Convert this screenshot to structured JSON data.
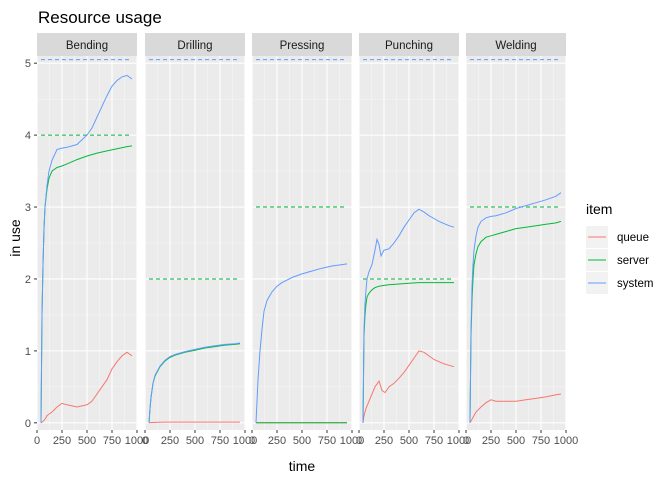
{
  "chart_data": {
    "type": "line",
    "title": "Resource usage",
    "xlabel": "time",
    "ylabel": "in use",
    "xlim": [
      0,
      1000
    ],
    "ylim": [
      -0.1,
      5.1
    ],
    "x_ticks": [
      0,
      250,
      500,
      750,
      1000
    ],
    "x_tick_labels": [
      "0",
      "250",
      "500",
      "750",
      "1000"
    ],
    "y_ticks": [
      0,
      1,
      2,
      3,
      4,
      5
    ],
    "grid": true,
    "legend": {
      "title": "item",
      "position": "right",
      "entries": [
        "queue",
        "server",
        "system"
      ]
    },
    "colors": {
      "queue": "#F8766D",
      "server": "#00BA38",
      "system": "#619CFF"
    },
    "panels": [
      {
        "name": "Bending",
        "capacity": [
          {
            "color": "server",
            "y": 4
          },
          {
            "color": "system",
            "y": 5.05
          }
        ],
        "series": [
          {
            "name": "queue",
            "x": [
              40,
              60,
              80,
              100,
              150,
              200,
              250,
              300,
              400,
              500,
              550,
              600,
              650,
              700,
              750,
              800,
              850,
              900,
              950
            ],
            "y": [
              0,
              0.02,
              0.05,
              0.1,
              0.15,
              0.22,
              0.27,
              0.25,
              0.22,
              0.25,
              0.3,
              0.4,
              0.5,
              0.6,
              0.75,
              0.85,
              0.93,
              0.98,
              0.93
            ]
          },
          {
            "name": "server",
            "x": [
              40,
              50,
              60,
              70,
              80,
              100,
              120,
              150,
              200,
              250,
              300,
              400,
              500,
              600,
              700,
              800,
              900,
              950
            ],
            "y": [
              0,
              1.5,
              2.2,
              2.7,
              3.0,
              3.25,
              3.4,
              3.5,
              3.55,
              3.57,
              3.6,
              3.66,
              3.71,
              3.75,
              3.78,
              3.81,
              3.84,
              3.85
            ]
          },
          {
            "name": "system",
            "x": [
              40,
              50,
              60,
              70,
              80,
              100,
              120,
              150,
              200,
              250,
              300,
              400,
              500,
              550,
              600,
              650,
              700,
              750,
              800,
              850,
              900,
              950
            ],
            "y": [
              0,
              1.5,
              2.2,
              2.7,
              3.0,
              3.3,
              3.5,
              3.65,
              3.8,
              3.82,
              3.83,
              3.87,
              4.0,
              4.1,
              4.25,
              4.4,
              4.55,
              4.68,
              4.76,
              4.81,
              4.83,
              4.78
            ]
          }
        ]
      },
      {
        "name": "Drilling",
        "capacity": [
          {
            "color": "server",
            "y": 2
          },
          {
            "color": "system",
            "y": 5.05
          }
        ],
        "series": [
          {
            "name": "queue",
            "x": [
              40,
              100,
              200,
              300,
              500,
              700,
              950
            ],
            "y": [
              0,
              0.005,
              0.01,
              0.01,
              0.01,
              0.01,
              0.01
            ]
          },
          {
            "name": "server",
            "x": [
              40,
              50,
              60,
              70,
              80,
              100,
              150,
              200,
              250,
              300,
              400,
              500,
              600,
              700,
              800,
              900,
              950
            ],
            "y": [
              0,
              0.2,
              0.35,
              0.45,
              0.55,
              0.65,
              0.78,
              0.86,
              0.91,
              0.94,
              0.98,
              1.01,
              1.04,
              1.06,
              1.08,
              1.09,
              1.1
            ]
          },
          {
            "name": "system",
            "x": [
              40,
              50,
              60,
              70,
              80,
              100,
              150,
              200,
              250,
              300,
              400,
              500,
              600,
              700,
              800,
              900,
              950
            ],
            "y": [
              0,
              0.2,
              0.35,
              0.45,
              0.55,
              0.66,
              0.79,
              0.87,
              0.92,
              0.95,
              0.99,
              1.02,
              1.05,
              1.07,
              1.09,
              1.1,
              1.11
            ]
          }
        ]
      },
      {
        "name": "Pressing",
        "capacity": [
          {
            "color": "server",
            "y": 3
          },
          {
            "color": "system",
            "y": 5.05
          }
        ],
        "series": [
          {
            "name": "queue",
            "x": [
              40,
              950
            ],
            "y": [
              0,
              0
            ]
          },
          {
            "name": "server",
            "x": [
              40,
              950
            ],
            "y": [
              0,
              0
            ]
          },
          {
            "name": "system",
            "x": [
              40,
              60,
              80,
              100,
              120,
              150,
              200,
              250,
              300,
              400,
              500,
              600,
              700,
              800,
              900,
              950
            ],
            "y": [
              0,
              0.6,
              1.0,
              1.3,
              1.55,
              1.7,
              1.82,
              1.9,
              1.95,
              2.02,
              2.07,
              2.11,
              2.15,
              2.18,
              2.2,
              2.21
            ]
          }
        ]
      },
      {
        "name": "Punching",
        "capacity": [
          {
            "color": "server",
            "y": 2
          },
          {
            "color": "system",
            "y": 5.05
          }
        ],
        "series": [
          {
            "name": "queue",
            "x": [
              40,
              50,
              70,
              100,
              130,
              160,
              200,
              230,
              260,
              300,
              350,
              400,
              450,
              500,
              550,
              600,
              650,
              700,
              750,
              800,
              850,
              900,
              950
            ],
            "y": [
              0,
              0.1,
              0.2,
              0.3,
              0.4,
              0.5,
              0.58,
              0.45,
              0.42,
              0.5,
              0.55,
              0.62,
              0.7,
              0.8,
              0.9,
              1.0,
              0.98,
              0.93,
              0.88,
              0.85,
              0.82,
              0.8,
              0.78
            ]
          },
          {
            "name": "server",
            "x": [
              40,
              50,
              60,
              70,
              80,
              100,
              130,
              160,
              200,
              250,
              300,
              400,
              500,
              600,
              700,
              800,
              900,
              950
            ],
            "y": [
              0,
              1.2,
              1.5,
              1.65,
              1.75,
              1.8,
              1.85,
              1.88,
              1.9,
              1.91,
              1.92,
              1.93,
              1.94,
              1.95,
              1.95,
              1.95,
              1.95,
              1.95
            ]
          },
          {
            "name": "system",
            "x": [
              40,
              50,
              60,
              70,
              80,
              100,
              130,
              160,
              180,
              200,
              220,
              250,
              300,
              350,
              400,
              450,
              500,
              550,
              600,
              650,
              700,
              750,
              800,
              850,
              900,
              950
            ],
            "y": [
              0,
              1.3,
              1.65,
              1.85,
              2.0,
              2.1,
              2.2,
              2.4,
              2.55,
              2.48,
              2.32,
              2.4,
              2.42,
              2.5,
              2.6,
              2.72,
              2.82,
              2.92,
              2.97,
              2.93,
              2.88,
              2.84,
              2.8,
              2.77,
              2.74,
              2.72
            ]
          }
        ]
      },
      {
        "name": "Welding",
        "capacity": [
          {
            "color": "server",
            "y": 3
          },
          {
            "color": "system",
            "y": 5.05
          }
        ],
        "series": [
          {
            "name": "queue",
            "x": [
              40,
              60,
              80,
              100,
              150,
              200,
              250,
              300,
              400,
              500,
              600,
              700,
              800,
              900,
              950
            ],
            "y": [
              0,
              0.05,
              0.1,
              0.15,
              0.22,
              0.28,
              0.32,
              0.3,
              0.3,
              0.3,
              0.32,
              0.34,
              0.36,
              0.39,
              0.4
            ]
          },
          {
            "name": "server",
            "x": [
              40,
              50,
              60,
              70,
              80,
              100,
              120,
              150,
              200,
              250,
              300,
              400,
              500,
              600,
              700,
              800,
              900,
              950
            ],
            "y": [
              0,
              1.2,
              1.7,
              2.0,
              2.2,
              2.35,
              2.45,
              2.52,
              2.58,
              2.6,
              2.62,
              2.66,
              2.7,
              2.72,
              2.74,
              2.76,
              2.78,
              2.8
            ]
          },
          {
            "name": "system",
            "x": [
              40,
              50,
              60,
              70,
              80,
              100,
              120,
              150,
              200,
              250,
              300,
              400,
              500,
              600,
              700,
              800,
              900,
              950
            ],
            "y": [
              0,
              1.3,
              1.9,
              2.2,
              2.4,
              2.6,
              2.72,
              2.8,
              2.85,
              2.87,
              2.88,
              2.92,
              2.98,
              3.02,
              3.06,
              3.1,
              3.15,
              3.2
            ]
          }
        ]
      }
    ]
  }
}
